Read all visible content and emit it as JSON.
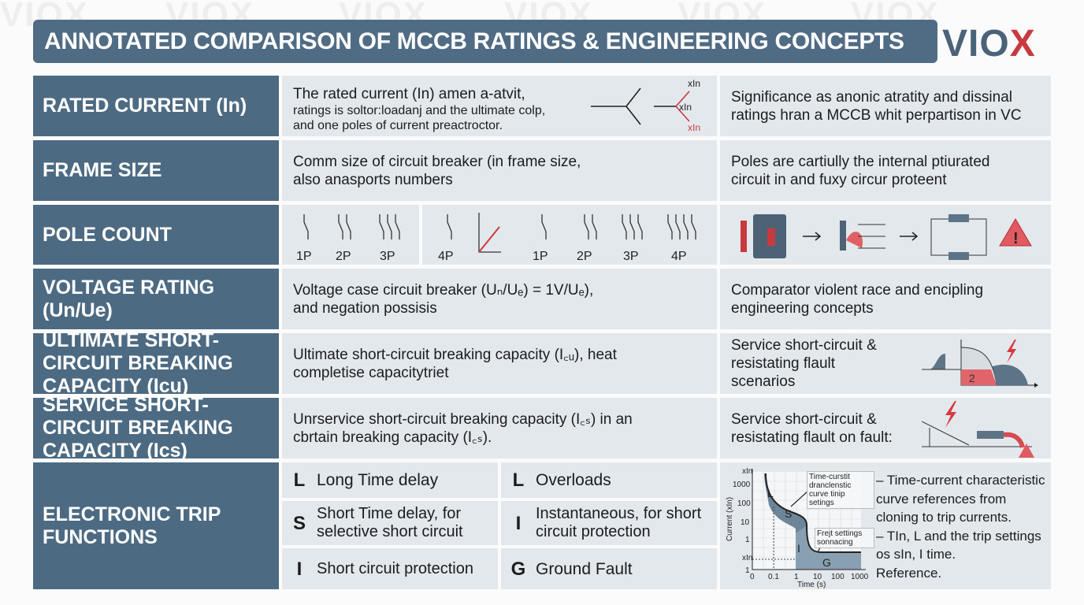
{
  "title": "ANNOTATED COMPARISON OF MCCB RATINGS & ENGINEERING CONCEPTS",
  "logo": "VIOX",
  "watermark": "VIOX",
  "colors": {
    "header": "#4f6c84",
    "label": "#4d6a83",
    "cell": "#e3e8ec",
    "accent": "#c93a40"
  },
  "rows": [
    {
      "label": "RATED CURRENT (In)",
      "desc_line1": "The rated current (In) amen a-atvit,",
      "desc_rest": "ratings is soltor:loadanj and the ultimate colp, and one poles of current preactroctor.",
      "note": "Significance as anonic atratity and dissinal ratings hran a MCCB whit perpartison in VC",
      "diagram_labels": [
        "xIn",
        "xIn",
        "xIn"
      ]
    },
    {
      "label": "FRAME SIZE",
      "desc": "Comm size of circuit breaker (in frame size, also anasports numbers",
      "note": "Poles are cartiully the internal ptiurated circuit in and fuxy circur proteent"
    },
    {
      "label": "POLE COUNT",
      "poles_a": [
        "1P",
        "2P",
        "3P"
      ],
      "poles_b": [
        "4P",
        "1P",
        "2P",
        "3P",
        "4P"
      ]
    },
    {
      "label": "VOLTAGE RATING (Un/Ue)",
      "desc": "Voltage case circuit breaker (Uₙ/Uₑ) = 1V/Uₑ), and negation possisis",
      "note": "Comparator violent race and encipling engineering concepts"
    },
    {
      "label": "ULTIMATE SHORT-CIRCUIT BREAKING CAPACITY (Icu)",
      "desc": "Ultimate short-circuit breaking capacity (I꜀ᵤ), heat completise capacitytriet",
      "note": "Service short-circuit & resistating flault scenarios",
      "diagram_label": "2"
    },
    {
      "label": "SERVICE SHORT-CIRCUIT BREAKING CAPACITY (Ics)",
      "desc": "Unrservice short-circuit breaking capacity (I꜀ₛ) in an cbrtain breaking capacity (I꜀ₛ).",
      "note": "Service short-circuit & resistating flault on fault:"
    },
    {
      "label": "ELECTRONIC TRIP FUNCTIONS",
      "functions": [
        {
          "letter": "L",
          "text": "Long Time delay"
        },
        {
          "letter": "L",
          "text": "Overloads"
        },
        {
          "letter": "S",
          "text": "Short Time delay, for selective short circuit"
        },
        {
          "letter": "I",
          "text": "Instantaneous, for short circuit protection"
        },
        {
          "letter": "I",
          "text": "Short circuit protection"
        },
        {
          "letter": "G",
          "text": "Ground Fault"
        }
      ],
      "chart": {
        "ylabel": "Current (xIn)",
        "xlabel": "Time (s)",
        "y_ticks": [
          "xIn",
          "1000",
          "100",
          "10",
          "1",
          "xIn",
          "1"
        ],
        "x_ticks": [
          "0",
          "0.1",
          "1",
          "10",
          "100",
          "1000"
        ],
        "annot1": "Time-curstit dranclenstic curve tinip setings",
        "annot2": "Frejt settings sonnacing",
        "zones": [
          "L",
          "S",
          "I",
          "G"
        ]
      },
      "notes": [
        "– Time-current characteristic curve references from cloning to trip currents.",
        "– TIn, L and the trip settings os sIn, I time.",
        "Reference."
      ]
    }
  ]
}
